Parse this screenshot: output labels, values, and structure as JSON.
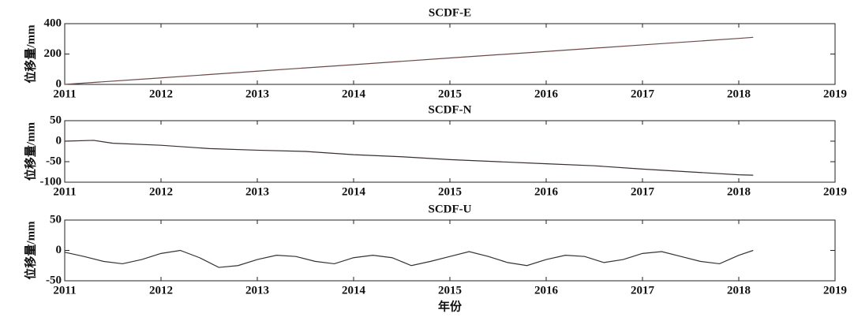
{
  "chart_data": [
    {
      "type": "line",
      "title": "SCDF-E",
      "ylabel": "位移量/mm",
      "xlim": [
        2011,
        2019
      ],
      "xticks": [
        2011,
        2012,
        2013,
        2014,
        2015,
        2016,
        2017,
        2018,
        2019
      ],
      "ylim": [
        0,
        400
      ],
      "yticks": [
        0,
        200,
        400
      ],
      "x": [
        2011,
        2012,
        2013,
        2014,
        2015,
        2016,
        2017,
        2018,
        2018.15
      ],
      "series": [
        {
          "color": "#6b4a4a",
          "values": [
            0,
            43,
            87,
            130,
            174,
            217,
            260,
            303,
            310
          ]
        }
      ]
    },
    {
      "type": "line",
      "title": "SCDF-N",
      "ylabel": "位移量/mm",
      "xlim": [
        2011,
        2019
      ],
      "xticks": [
        2011,
        2012,
        2013,
        2014,
        2015,
        2016,
        2017,
        2018,
        2019
      ],
      "ylim": [
        -100,
        50
      ],
      "yticks": [
        -100,
        -50,
        0,
        50
      ],
      "x": [
        2011,
        2011.3,
        2011.5,
        2012,
        2012.5,
        2013,
        2013.5,
        2014,
        2014.5,
        2015,
        2015.5,
        2016,
        2016.5,
        2017,
        2017.5,
        2018,
        2018.15
      ],
      "series": [
        {
          "color": "#3a2e2e",
          "values": [
            0,
            2,
            -5,
            -10,
            -18,
            -22,
            -25,
            -33,
            -38,
            -45,
            -50,
            -55,
            -60,
            -68,
            -75,
            -82,
            -83
          ]
        }
      ]
    },
    {
      "type": "line",
      "title": "SCDF-U",
      "ylabel": "位移量/mm",
      "xlabel": "年份",
      "xlim": [
        2011,
        2019
      ],
      "xticks": [
        2011,
        2012,
        2013,
        2014,
        2015,
        2016,
        2017,
        2018,
        2019
      ],
      "ylim": [
        -50,
        50
      ],
      "yticks": [
        -50,
        0,
        50
      ],
      "x": [
        2011.0,
        2011.2,
        2011.4,
        2011.6,
        2011.8,
        2012.0,
        2012.2,
        2012.4,
        2012.6,
        2012.8,
        2013.0,
        2013.2,
        2013.4,
        2013.6,
        2013.8,
        2014.0,
        2014.2,
        2014.4,
        2014.6,
        2014.8,
        2015.0,
        2015.2,
        2015.4,
        2015.6,
        2015.8,
        2016.0,
        2016.2,
        2016.4,
        2016.6,
        2016.8,
        2017.0,
        2017.2,
        2017.4,
        2017.6,
        2017.8,
        2018.0,
        2018.15
      ],
      "series": [
        {
          "color": "#333333",
          "values": [
            -3,
            -10,
            -18,
            -22,
            -15,
            -5,
            0,
            -12,
            -28,
            -25,
            -15,
            -8,
            -10,
            -18,
            -22,
            -12,
            -8,
            -12,
            -25,
            -18,
            -10,
            -2,
            -10,
            -20,
            -25,
            -15,
            -8,
            -10,
            -20,
            -15,
            -5,
            -2,
            -10,
            -18,
            -22,
            -8,
            0
          ]
        }
      ]
    }
  ]
}
